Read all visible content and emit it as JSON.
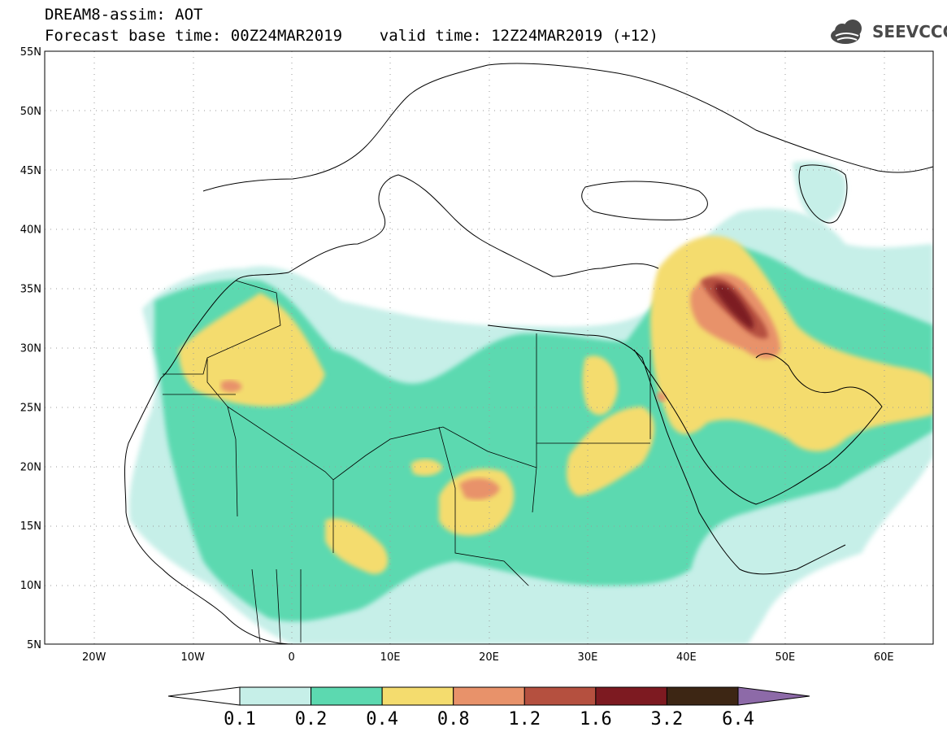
{
  "header": {
    "line1": "DREAM8-assim: AOT",
    "line2": "Forecast base time: 00Z24MAR2019    valid time: 12Z24MAR2019 (+12)"
  },
  "logo": {
    "icon": "cloud-icon",
    "text": "SEEVCCC"
  },
  "map": {
    "lat_labels": [
      "55N",
      "50N",
      "45N",
      "40N",
      "35N",
      "30N",
      "25N",
      "20N",
      "15N",
      "10N",
      "5N"
    ],
    "lon_labels": [
      "20W",
      "10W",
      "0",
      "10E",
      "20E",
      "30E",
      "40E",
      "50E",
      "60E"
    ],
    "lat_range": [
      5,
      55
    ],
    "lon_range": [
      -25,
      65
    ],
    "grid": "dotted"
  },
  "colorbar": {
    "labels": [
      "0.1",
      "0.2",
      "0.4",
      "0.8",
      "1.2",
      "1.6",
      "3.2",
      "6.4"
    ],
    "colors": [
      "#ffffff",
      "#c6efe8",
      "#5cd9b0",
      "#f4dc6e",
      "#e8926a",
      "#b5503f",
      "#7d1a21",
      "#3d2614",
      "#8d6aa8"
    ]
  }
}
